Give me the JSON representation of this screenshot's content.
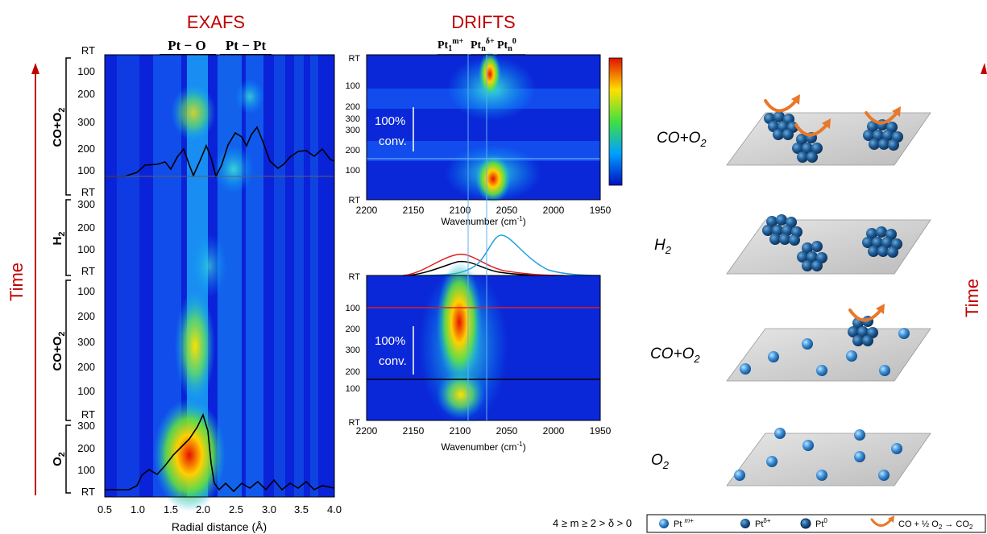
{
  "exafs": {
    "title": "EXAFS",
    "header_a": "Pt − O",
    "header_b": "Pt − Pt",
    "xlabel": "Radial distance (Å)",
    "xticks": [
      "0.5",
      "1.0",
      "1.5",
      "2.0",
      "2.5",
      "3.0",
      "3.5",
      "4.0"
    ],
    "yticks": [
      "RT",
      "100",
      "200",
      "300",
      "200",
      "100",
      "RT",
      "300",
      "200",
      "100",
      "RT",
      "100",
      "200",
      "300",
      "200",
      "100",
      "RT",
      "300",
      "200",
      "100",
      "RT"
    ],
    "segments": [
      "CO+O2",
      "H2",
      "CO+O2",
      "O2"
    ]
  },
  "drifts": {
    "title": "DRIFTS",
    "header_a": "Pt1m+",
    "header_b": "Ptnδ+",
    "header_c": "Ptn0",
    "xlabel": "Wavenumber (cm-1)",
    "xticks": [
      "2200",
      "2150",
      "2100",
      "2050",
      "2000",
      "1950"
    ],
    "top_yticks": [
      "RT",
      "100",
      "200",
      "300",
      "300",
      "200",
      "100",
      "RT"
    ],
    "bottom_yticks": [
      "RT",
      "100",
      "200",
      "300",
      "200",
      "100",
      "RT"
    ],
    "conversion_line1": "100%",
    "conversion_line2": "conv."
  },
  "schematic": {
    "rows": [
      "CO+O2",
      "H2",
      "CO+O2",
      "O2"
    ]
  },
  "right_axis_label": "Time",
  "left_axis_label": "Time",
  "legend": {
    "condition": "4 ≥ m ≥ 2 > δ > 0",
    "items": [
      "Pt m+",
      "Ptδ+",
      "Pt0",
      "CO + ½ O2 → CO2"
    ]
  },
  "colors": {
    "title_red": "#c00000",
    "time_red": "#c00000",
    "curve_red": "#e02020",
    "curve_blue": "#20a0e0"
  }
}
